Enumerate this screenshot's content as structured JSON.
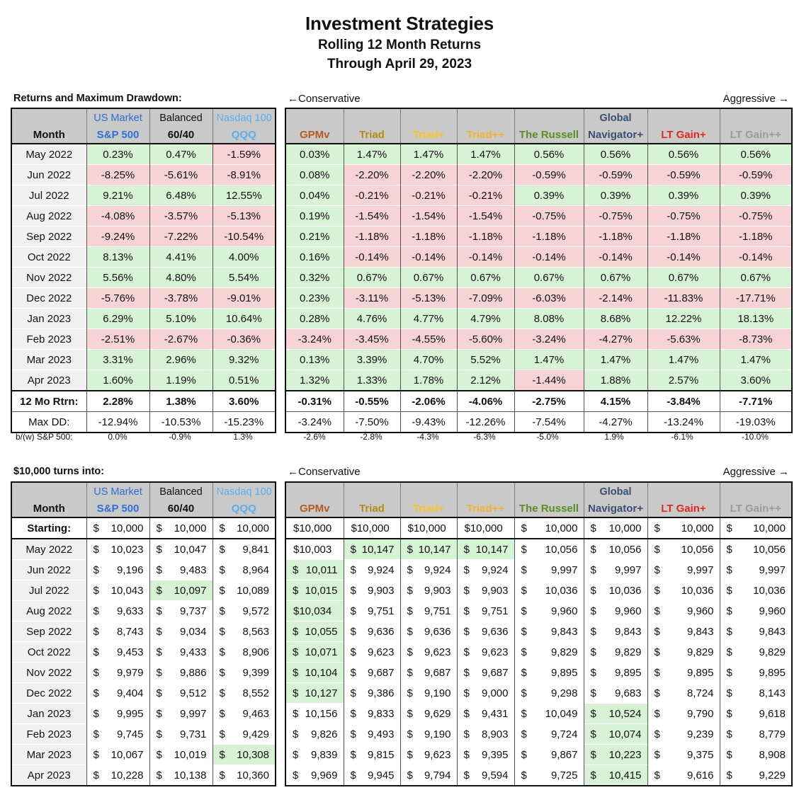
{
  "title": "Investment Strategies",
  "subtitle1": "Rolling 12 Month Returns",
  "subtitle2": "Through April 29, 2023",
  "section1_label": "Returns and Maximum Drawdown:",
  "section2_label": "$10,000 turns into:",
  "conservative": "←Conservative",
  "aggressive": "Aggressive →",
  "colors": {
    "sp500": "#2e6fd8",
    "qqq": "#5aaef0",
    "gpmv": "#b65a1e",
    "triad": "#b68a16",
    "triadplus": "#f5c42c",
    "triadpp": "#f2b23a",
    "russell": "#5b8c28",
    "global": "#3a4f72",
    "ltgain": "#e0281e",
    "ltgainpp": "#9a9a9a"
  },
  "header": {
    "month": "Month",
    "bench": [
      {
        "top": "US Market",
        "name": "S&P 500",
        "color": "#2e6fd8"
      },
      {
        "top": "Balanced",
        "name": "60/40",
        "color": "#111111"
      },
      {
        "top": "Nasdaq 100",
        "name": "QQQ",
        "color": "#5aaef0"
      }
    ],
    "strat": [
      {
        "top": "",
        "name": "GPMv",
        "color": "#b65a1e"
      },
      {
        "top": "",
        "name": "Triad",
        "color": "#b68a16"
      },
      {
        "top": "",
        "name": "Triad+",
        "color": "#f5c42c"
      },
      {
        "top": "",
        "name": "Triad++",
        "color": "#f2b23a"
      },
      {
        "top": "",
        "name": "The Russell",
        "color": "#5b8c28"
      },
      {
        "top": "Global",
        "name": "Navigator+",
        "color": "#3a4f72"
      },
      {
        "top": "",
        "name": "LT Gain+",
        "color": "#e0281e"
      },
      {
        "top": "",
        "name": "LT Gain++",
        "color": "#9a9a9a"
      }
    ]
  },
  "returns": [
    {
      "month": "May 2022",
      "vals": [
        "0.23%",
        "0.47%",
        "-1.59%",
        "0.03%",
        "1.47%",
        "1.47%",
        "1.47%",
        "0.56%",
        "0.56%",
        "0.56%",
        "0.56%"
      ]
    },
    {
      "month": "Jun 2022",
      "vals": [
        "-8.25%",
        "-5.61%",
        "-8.91%",
        "0.08%",
        "-2.20%",
        "-2.20%",
        "-2.20%",
        "-0.59%",
        "-0.59%",
        "-0.59%",
        "-0.59%"
      ]
    },
    {
      "month": "Jul 2022",
      "vals": [
        "9.21%",
        "6.48%",
        "12.55%",
        "0.04%",
        "-0.21%",
        "-0.21%",
        "-0.21%",
        "0.39%",
        "0.39%",
        "0.39%",
        "0.39%"
      ]
    },
    {
      "month": "Aug 2022",
      "vals": [
        "-4.08%",
        "-3.57%",
        "-5.13%",
        "0.19%",
        "-1.54%",
        "-1.54%",
        "-1.54%",
        "-0.75%",
        "-0.75%",
        "-0.75%",
        "-0.75%"
      ]
    },
    {
      "month": "Sep 2022",
      "vals": [
        "-9.24%",
        "-7.22%",
        "-10.54%",
        "0.21%",
        "-1.18%",
        "-1.18%",
        "-1.18%",
        "-1.18%",
        "-1.18%",
        "-1.18%",
        "-1.18%"
      ]
    },
    {
      "month": "Oct 2022",
      "vals": [
        "8.13%",
        "4.41%",
        "4.00%",
        "0.16%",
        "-0.14%",
        "-0.14%",
        "-0.14%",
        "-0.14%",
        "-0.14%",
        "-0.14%",
        "-0.14%"
      ]
    },
    {
      "month": "Nov 2022",
      "vals": [
        "5.56%",
        "4.80%",
        "5.54%",
        "0.32%",
        "0.67%",
        "0.67%",
        "0.67%",
        "0.67%",
        "0.67%",
        "0.67%",
        "0.67%"
      ]
    },
    {
      "month": "Dec 2022",
      "vals": [
        "-5.76%",
        "-3.78%",
        "-9.01%",
        "0.23%",
        "-3.11%",
        "-5.13%",
        "-7.09%",
        "-6.03%",
        "-2.14%",
        "-11.83%",
        "-17.71%"
      ]
    },
    {
      "month": "Jan 2023",
      "vals": [
        "6.29%",
        "5.10%",
        "10.64%",
        "0.28%",
        "4.76%",
        "4.77%",
        "4.79%",
        "8.08%",
        "8.68%",
        "12.22%",
        "18.13%"
      ]
    },
    {
      "month": "Feb 2023",
      "vals": [
        "-2.51%",
        "-2.67%",
        "-0.36%",
        "-3.24%",
        "-3.45%",
        "-4.55%",
        "-5.60%",
        "-3.24%",
        "-4.27%",
        "-5.63%",
        "-8.73%"
      ]
    },
    {
      "month": "Mar 2023",
      "vals": [
        "3.31%",
        "2.96%",
        "9.32%",
        "0.13%",
        "3.39%",
        "4.70%",
        "5.52%",
        "1.47%",
        "1.47%",
        "1.47%",
        "1.47%"
      ]
    },
    {
      "month": "Apr 2023",
      "vals": [
        "1.60%",
        "1.19%",
        "0.51%",
        "1.32%",
        "1.33%",
        "1.78%",
        "2.12%",
        "-1.44%",
        "1.88%",
        "2.57%",
        "3.60%"
      ]
    }
  ],
  "totals": {
    "label": "12 Mo Rtrn:",
    "vals": [
      "2.28%",
      "1.38%",
      "3.60%",
      "-0.31%",
      "-0.55%",
      "-2.06%",
      "-4.06%",
      "-2.75%",
      "4.15%",
      "-3.84%",
      "-7.71%"
    ]
  },
  "maxdd": {
    "label": "Max DD:",
    "vals": [
      "-12.94%",
      "-10.53%",
      "-15.23%",
      "-3.24%",
      "-7.50%",
      "-9.43%",
      "-12.26%",
      "-7.54%",
      "-4.27%",
      "-13.24%",
      "-19.03%"
    ]
  },
  "bw": {
    "label": "b/(w) S&P 500:",
    "vals": [
      "0.0%",
      "-0.9%",
      "1.3%",
      "-2.6%",
      "-2.8%",
      "-4.3%",
      "-6.3%",
      "-5.0%",
      "1.9%",
      "-6.1%",
      "-10.0%"
    ]
  },
  "growth_start": {
    "label": "Starting:",
    "vals": [
      "10,000",
      "10,000",
      "10,000",
      "$10,000",
      "$10,000",
      "$10,000",
      "$10,000",
      "10,000",
      "10,000",
      "10,000",
      "10,000"
    ]
  },
  "growth": [
    {
      "month": "May 2022",
      "vals": [
        "10,023",
        "10,047",
        "9,841",
        "$10,003",
        "10,147",
        "10,147",
        "10,147",
        "10,056",
        "10,056",
        "10,056",
        "10,056"
      ]
    },
    {
      "month": "Jun 2022",
      "vals": [
        "9,196",
        "9,483",
        "8,964",
        "10,011",
        "9,924",
        "9,924",
        "9,924",
        "9,997",
        "9,997",
        "9,997",
        "9,997"
      ]
    },
    {
      "month": "Jul 2022",
      "vals": [
        "10,043",
        "10,097",
        "10,089",
        "10,015",
        "9,903",
        "9,903",
        "9,903",
        "10,036",
        "10,036",
        "10,036",
        "10,036"
      ]
    },
    {
      "month": "Aug 2022",
      "vals": [
        "9,633",
        "9,737",
        "9,572",
        "$10,034",
        "9,751",
        "9,751",
        "9,751",
        "9,960",
        "9,960",
        "9,960",
        "9,960"
      ]
    },
    {
      "month": "Sep 2022",
      "vals": [
        "8,743",
        "9,034",
        "8,563",
        "10,055",
        "9,636",
        "9,636",
        "9,636",
        "9,843",
        "9,843",
        "9,843",
        "9,843"
      ]
    },
    {
      "month": "Oct 2022",
      "vals": [
        "9,453",
        "9,433",
        "8,906",
        "10,071",
        "9,623",
        "9,623",
        "9,623",
        "9,829",
        "9,829",
        "9,829",
        "9,829"
      ]
    },
    {
      "month": "Nov 2022",
      "vals": [
        "9,979",
        "9,886",
        "9,399",
        "10,104",
        "9,687",
        "9,687",
        "9,687",
        "9,895",
        "9,895",
        "9,895",
        "9,895"
      ]
    },
    {
      "month": "Dec 2022",
      "vals": [
        "9,404",
        "9,512",
        "8,552",
        "10,127",
        "9,386",
        "9,190",
        "9,000",
        "9,298",
        "9,683",
        "8,724",
        "8,143"
      ]
    },
    {
      "month": "Jan 2023",
      "vals": [
        "9,995",
        "9,997",
        "9,463",
        "10,156",
        "9,833",
        "9,629",
        "9,431",
        "10,049",
        "10,524",
        "9,790",
        "9,618"
      ]
    },
    {
      "month": "Feb 2023",
      "vals": [
        "9,745",
        "9,731",
        "9,429",
        "9,826",
        "9,493",
        "9,190",
        "8,903",
        "9,724",
        "10,074",
        "9,239",
        "8,779"
      ]
    },
    {
      "month": "Mar 2023",
      "vals": [
        "10,067",
        "10,019",
        "10,308",
        "9,839",
        "9,815",
        "9,623",
        "9,395",
        "9,867",
        "10,223",
        "9,375",
        "8,908"
      ]
    },
    {
      "month": "Apr 2023",
      "vals": [
        "10,228",
        "10,138",
        "10,360",
        "9,969",
        "9,945",
        "9,794",
        "9,594",
        "9,725",
        "10,415",
        "9,616",
        "9,229"
      ]
    }
  ],
  "growth_highlight": [
    [
      0,
      0,
      0,
      0,
      1,
      1,
      1,
      0,
      0,
      0,
      0
    ],
    [
      0,
      0,
      0,
      1,
      0,
      0,
      0,
      0,
      0,
      0,
      0
    ],
    [
      0,
      1,
      0,
      1,
      0,
      0,
      0,
      0,
      0,
      0,
      0
    ],
    [
      0,
      0,
      0,
      1,
      0,
      0,
      0,
      0,
      0,
      0,
      0
    ],
    [
      0,
      0,
      0,
      1,
      0,
      0,
      0,
      0,
      0,
      0,
      0
    ],
    [
      0,
      0,
      0,
      1,
      0,
      0,
      0,
      0,
      0,
      0,
      0
    ],
    [
      0,
      0,
      0,
      1,
      0,
      0,
      0,
      0,
      0,
      0,
      0
    ],
    [
      0,
      0,
      0,
      1,
      0,
      0,
      0,
      0,
      0,
      0,
      0
    ],
    [
      0,
      0,
      0,
      0,
      0,
      0,
      0,
      0,
      1,
      0,
      0
    ],
    [
      0,
      0,
      0,
      0,
      0,
      0,
      0,
      0,
      1,
      0,
      0
    ],
    [
      0,
      0,
      1,
      0,
      0,
      0,
      0,
      0,
      1,
      0,
      0
    ],
    [
      0,
      0,
      0,
      0,
      0,
      0,
      0,
      0,
      1,
      0,
      0
    ]
  ]
}
